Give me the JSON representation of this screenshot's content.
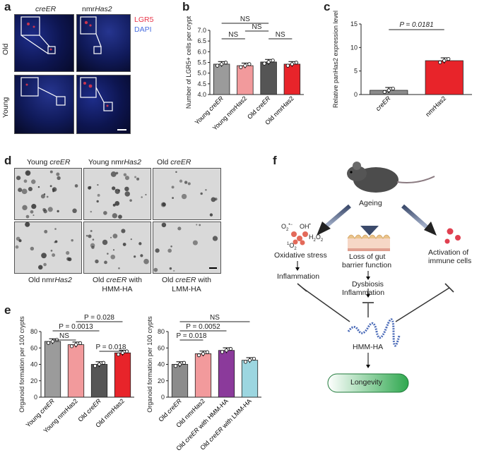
{
  "panels": {
    "a": "a",
    "b": "b",
    "c": "c",
    "d": "d",
    "e": "e",
    "f": "f"
  },
  "panel_a": {
    "col1": "creER",
    "col2_prefix": "nmr",
    "col2_gene": "Has2",
    "row1": "Old",
    "row2": "Young",
    "legend_lgr5": "LGR5",
    "legend_dapi": "DAPI",
    "colors": {
      "lgr5": "#e8374a",
      "dapi": "#4a6fe0"
    }
  },
  "panel_d": {
    "labels_top": [
      "Young creER",
      "Young nmrHas2",
      "Old creER"
    ],
    "labels_bottom": [
      "Old nmrHas2",
      "Old creER with HMM-HA",
      "Old creER with LMM-HA"
    ]
  },
  "panel_f": {
    "ageing": "Ageing",
    "oxidative": "Oxidative stress",
    "inflammation_left": "Inflammation",
    "loss_gut_1": "Loss of gut",
    "loss_gut_2": "barrier function",
    "dysbiosis": "Dysbiosis",
    "inflammation_mid": "Inflammation",
    "activation_1": "Activation of",
    "activation_2": "immune cells",
    "hmmha": "HMM-HA",
    "longevity": "Longevity",
    "ros": {
      "o2": "O",
      "oh": "OH",
      "h2o2": "H",
      "singlet": "O"
    }
  },
  "chart_data": [
    {
      "id": "b",
      "type": "bar",
      "ylabel": "Number of LGR5+ cells per crypt",
      "ylim": [
        4.0,
        7.0
      ],
      "yticks": [
        "4.0",
        "4.5",
        "5.0",
        "5.5",
        "6.0",
        "6.5",
        "7.0"
      ],
      "categories": [
        "Young creER",
        "Young nmrHas2",
        "Old creER",
        "Old nmrHas2"
      ],
      "values": [
        5.42,
        5.35,
        5.52,
        5.42
      ],
      "colors": [
        "#9b9b9b",
        "#f29a9c",
        "#555555",
        "#e8242a"
      ],
      "annotations": [
        "NS",
        "NS",
        "NS",
        "NS"
      ]
    },
    {
      "id": "c",
      "type": "bar",
      "ylabel": "Relative panHas2 expression level",
      "ylim": [
        0,
        15
      ],
      "yticks": [
        "0",
        "5",
        "10",
        "15"
      ],
      "categories": [
        "creER",
        "nmrHas2"
      ],
      "values": [
        0.9,
        7.2
      ],
      "colors": [
        "#8c8c8c",
        "#e8242a"
      ],
      "annotation": "P = 0.0181"
    },
    {
      "id": "e1",
      "type": "bar",
      "ylabel": "Organoid formation per 100 crypts",
      "ylim": [
        0,
        80
      ],
      "yticks": [
        "0",
        "20",
        "40",
        "60",
        "80"
      ],
      "categories": [
        "Young creER",
        "Young nmrHas2",
        "Old creER",
        "Old nmrHas2"
      ],
      "values": [
        68,
        64,
        40,
        54
      ],
      "colors": [
        "#9b9b9b",
        "#f29a9c",
        "#555555",
        "#e8242a"
      ],
      "annotations": [
        "P = 0.028",
        "P = 0.0013",
        "NS",
        "P = 0.018"
      ]
    },
    {
      "id": "e2",
      "type": "bar",
      "ylabel": "Organoid formation per 100 crypts",
      "ylim": [
        0,
        80
      ],
      "yticks": [
        "0",
        "20",
        "40",
        "60",
        "80"
      ],
      "categories": [
        "Old creER",
        "Old nmrHas2",
        "Old creER with HMM-HA",
        "Old creER with LMM-HA"
      ],
      "values": [
        40,
        53,
        57,
        45
      ],
      "colors": [
        "#8c8c8c",
        "#f29a9c",
        "#8b3a9b",
        "#9cd6e0"
      ],
      "annotations": [
        "NS",
        "P = 0.0052",
        "P = 0.018"
      ]
    }
  ]
}
